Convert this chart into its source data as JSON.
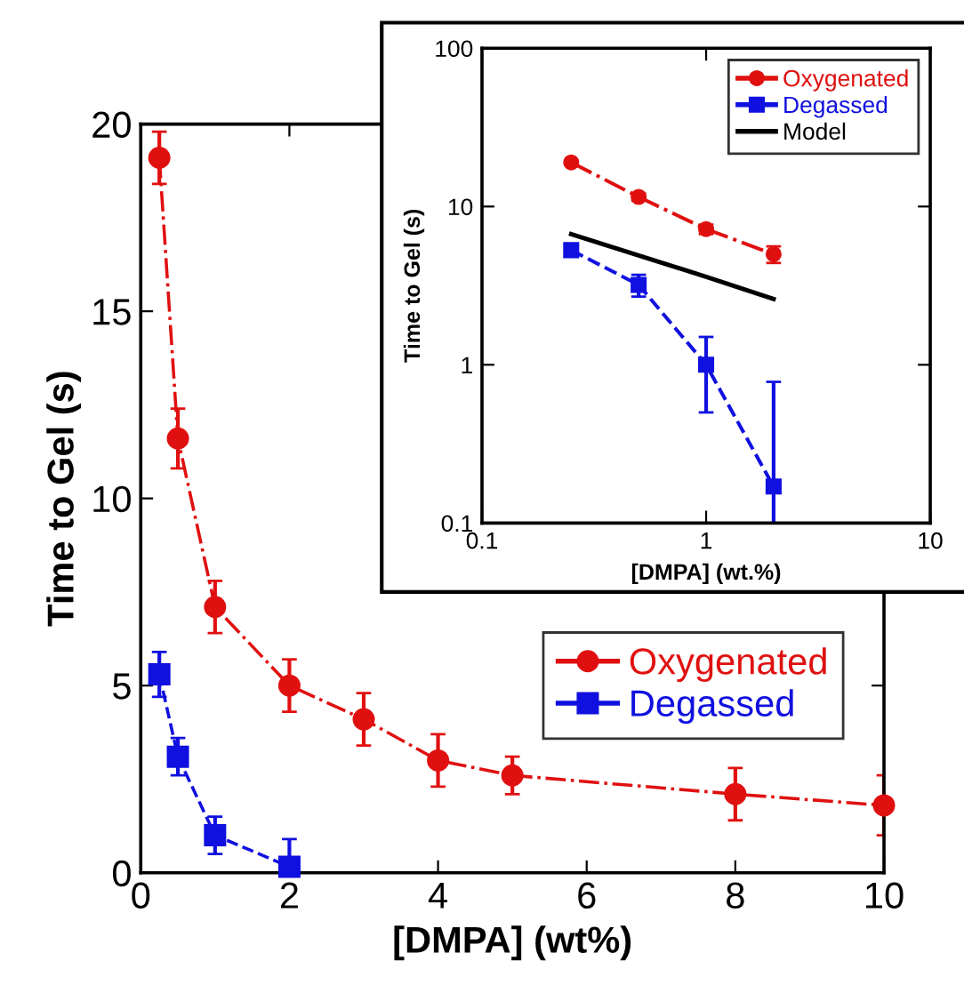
{
  "chart_data": [
    {
      "type": "line",
      "xlabel": "[DMPA] (wt%)",
      "ylabel": "Time to Gel (s)",
      "xlim": [
        0,
        10
      ],
      "ylim": [
        0,
        20
      ],
      "xticks": [
        0,
        2,
        4,
        6,
        8,
        10
      ],
      "yticks": [
        0,
        5,
        10,
        15,
        20
      ],
      "grid": false,
      "legend": "right",
      "series": [
        {
          "name": "Oxygenated",
          "color": "#e01010",
          "marker": "circle",
          "line_style": "dashdot",
          "x": [
            0.25,
            0.5,
            1,
            2,
            3,
            4,
            5,
            8,
            10
          ],
          "values": [
            19.1,
            11.6,
            7.1,
            5.0,
            4.1,
            3.0,
            2.6,
            2.1,
            1.8
          ],
          "errors": [
            0.7,
            0.8,
            0.7,
            0.7,
            0.7,
            0.7,
            0.5,
            0.7,
            0.8
          ]
        },
        {
          "name": "Degassed",
          "color": "#1010e0",
          "marker": "square",
          "line_style": "dashed",
          "x": [
            0.25,
            0.5,
            1,
            2
          ],
          "values": [
            5.3,
            3.1,
            1.0,
            0.16
          ],
          "errors": [
            0.6,
            0.5,
            0.5,
            [
              0,
              0.9
            ]
          ]
        }
      ]
    },
    {
      "type": "line",
      "xlabel": "[DMPA] (wt.%)",
      "ylabel": "Time to Gel (s)",
      "log": "xy",
      "xlim": [
        0.1,
        10
      ],
      "ylim": [
        0.1,
        100
      ],
      "xticks": [
        0.1,
        1,
        10
      ],
      "yticks": [
        0.1,
        1,
        10,
        100
      ],
      "grid": false,
      "legend": "top right",
      "series": [
        {
          "name": "Oxygenated",
          "color": "#e01010",
          "marker": "circle",
          "line_style": "dashdot",
          "x": [
            0.25,
            0.5,
            1,
            2
          ],
          "values": [
            19,
            11.5,
            7.2,
            5.0
          ],
          "errors": [
            0.5,
            0.6,
            0.5,
            0.6
          ]
        },
        {
          "name": "Degassed",
          "color": "#1010e0",
          "marker": "square",
          "line_style": "dashed",
          "x": [
            0.25,
            0.5,
            1,
            2
          ],
          "values": [
            5.3,
            3.2,
            1.0,
            0.17
          ],
          "errors": [
            0.4,
            0.5,
            [
              0.5,
              1.5
            ],
            [
              0.1,
              0.78
            ]
          ]
        },
        {
          "name": "Model",
          "color": "#000000",
          "marker": "none",
          "line_style": "solid",
          "x": [
            0.25,
            0.5,
            1,
            2
          ],
          "values": [
            6.7,
            4.9,
            3.6,
            2.6
          ]
        }
      ]
    }
  ]
}
